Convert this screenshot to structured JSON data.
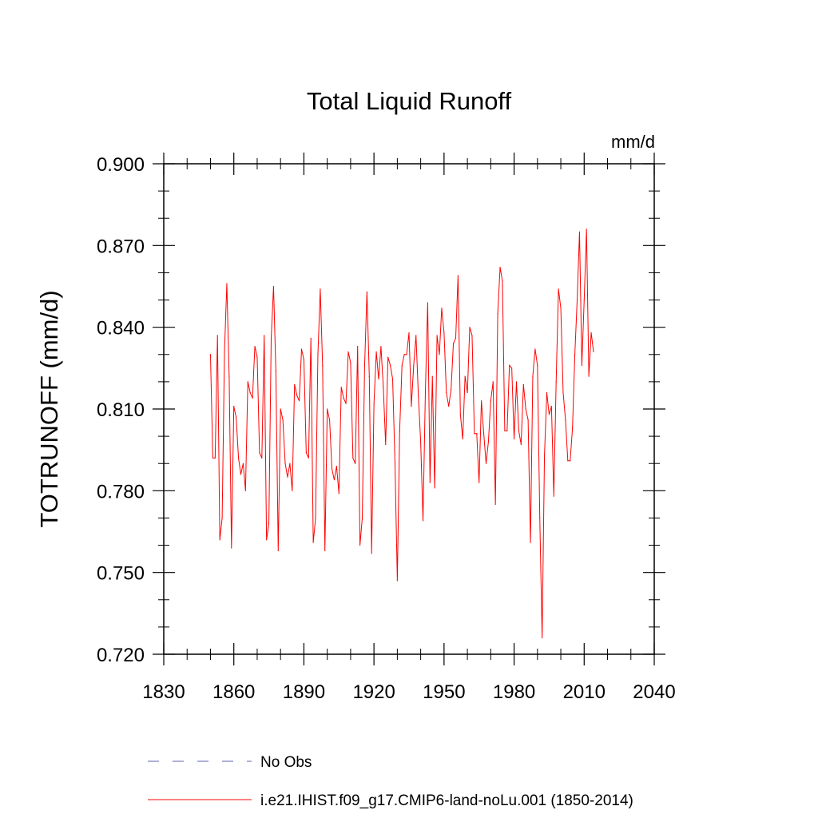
{
  "chart_data": {
    "type": "line",
    "title": "Total Liquid Runoff",
    "units": "mm/d",
    "ylabel": "TOTRUNOFF  (mm/d)",
    "xlabel": "",
    "xlim": [
      1830,
      2040
    ],
    "ylim": [
      0.72,
      0.9
    ],
    "x_ticks": [
      1830,
      1860,
      1890,
      1920,
      1950,
      1980,
      2010,
      2040
    ],
    "x_tick_labels": [
      "1830",
      "1860",
      "1890",
      "1920",
      "1950",
      "1980",
      "2010",
      "2040"
    ],
    "y_ticks": [
      0.72,
      0.75,
      0.78,
      0.81,
      0.84,
      0.87,
      0.9
    ],
    "y_tick_labels": [
      "0.720",
      "0.750",
      "0.780",
      "0.810",
      "0.840",
      "0.870",
      "0.900"
    ],
    "grid": false,
    "legend_position": "bottom",
    "series": [
      {
        "name": "No Obs",
        "color": "#8080c0",
        "style": "dashed",
        "x": [],
        "values": []
      },
      {
        "name": "i.e21.IHIST.f09_g17.CMIP6-land-noLu.001 (1850-2014)",
        "color": "#ff0000",
        "style": "solid",
        "x_start": 1850,
        "x_step": 1,
        "values": [
          0.83,
          0.792,
          0.792,
          0.837,
          0.762,
          0.77,
          0.831,
          0.856,
          0.822,
          0.759,
          0.811,
          0.807,
          0.792,
          0.786,
          0.79,
          0.78,
          0.82,
          0.816,
          0.814,
          0.833,
          0.829,
          0.794,
          0.792,
          0.837,
          0.762,
          0.768,
          0.836,
          0.855,
          0.824,
          0.758,
          0.81,
          0.806,
          0.79,
          0.785,
          0.79,
          0.78,
          0.819,
          0.815,
          0.813,
          0.832,
          0.828,
          0.794,
          0.792,
          0.836,
          0.761,
          0.77,
          0.83,
          0.854,
          0.826,
          0.758,
          0.81,
          0.806,
          0.788,
          0.784,
          0.789,
          0.779,
          0.818,
          0.814,
          0.812,
          0.831,
          0.827,
          0.792,
          0.79,
          0.833,
          0.76,
          0.77,
          0.826,
          0.853,
          0.822,
          0.757,
          0.812,
          0.831,
          0.821,
          0.833,
          0.818,
          0.797,
          0.829,
          0.826,
          0.821,
          0.79,
          0.747,
          0.802,
          0.826,
          0.83,
          0.83,
          0.838,
          0.811,
          0.826,
          0.837,
          0.815,
          0.798,
          0.769,
          0.816,
          0.849,
          0.783,
          0.822,
          0.781,
          0.837,
          0.83,
          0.847,
          0.838,
          0.816,
          0.811,
          0.817,
          0.834,
          0.836,
          0.859,
          0.808,
          0.799,
          0.822,
          0.816,
          0.84,
          0.837,
          0.801,
          0.801,
          0.783,
          0.813,
          0.801,
          0.79,
          0.798,
          0.813,
          0.82,
          0.775,
          0.845,
          0.862,
          0.857,
          0.802,
          0.802,
          0.826,
          0.825,
          0.799,
          0.82,
          0.802,
          0.797,
          0.819,
          0.81,
          0.806,
          0.761,
          0.822,
          0.832,
          0.826,
          0.77,
          0.726,
          0.793,
          0.816,
          0.808,
          0.811,
          0.778,
          0.82,
          0.854,
          0.847,
          0.816,
          0.806,
          0.791,
          0.791,
          0.803,
          0.83,
          0.85,
          0.875,
          0.826,
          0.85,
          0.876,
          0.822,
          0.838,
          0.831
        ]
      }
    ]
  }
}
